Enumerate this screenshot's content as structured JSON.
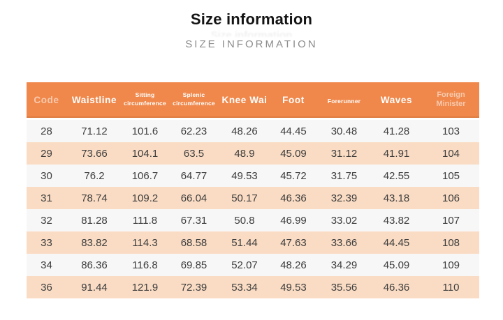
{
  "page": {
    "title": "Size information",
    "subtitle": "SIZE INFORMATION"
  },
  "colors": {
    "header_bg": "#F0884B",
    "header_text": "#FFFFFF",
    "header_text_muted": "#F9D2B2",
    "row_bg": "#F7F7F8",
    "row_alt_bg": "#FADCC4",
    "cell_text": "#3D3D3D",
    "title_text": "#141414",
    "subtitle_text": "#8C8C8C"
  },
  "table": {
    "columns": [
      {
        "key": "code",
        "label": "Code",
        "size": "large",
        "muted": true
      },
      {
        "key": "waistline",
        "label": "Waistline",
        "size": "large",
        "muted": false
      },
      {
        "key": "sitting",
        "label": "Sitting circumference",
        "size": "small",
        "muted": false
      },
      {
        "key": "splenic",
        "label": "Splenic circumference",
        "size": "small",
        "muted": false
      },
      {
        "key": "knee",
        "label": "Knee Wai",
        "size": "large",
        "muted": false
      },
      {
        "key": "foot",
        "label": "Foot",
        "size": "large",
        "muted": false
      },
      {
        "key": "forerunner",
        "label": "Forerunner",
        "size": "small",
        "muted": false
      },
      {
        "key": "waves",
        "label": "Waves",
        "size": "large",
        "muted": false
      },
      {
        "key": "foreign",
        "label": "Foreign Minister",
        "size": "medium",
        "muted": true
      }
    ],
    "rows": [
      [
        "28",
        "71.12",
        "101.6",
        "62.23",
        "48.26",
        "44.45",
        "30.48",
        "41.28",
        "103"
      ],
      [
        "29",
        "73.66",
        "104.1",
        "63.5",
        "48.9",
        "45.09",
        "31.12",
        "41.91",
        "104"
      ],
      [
        "30",
        "76.2",
        "106.7",
        "64.77",
        "49.53",
        "45.72",
        "31.75",
        "42.55",
        "105"
      ],
      [
        "31",
        "78.74",
        "109.2",
        "66.04",
        "50.17",
        "46.36",
        "32.39",
        "43.18",
        "106"
      ],
      [
        "32",
        "81.28",
        "111.8",
        "67.31",
        "50.8",
        "46.99",
        "33.02",
        "43.82",
        "107"
      ],
      [
        "33",
        "83.82",
        "114.3",
        "68.58",
        "51.44",
        "47.63",
        "33.66",
        "44.45",
        "108"
      ],
      [
        "34",
        "86.36",
        "116.8",
        "69.85",
        "52.07",
        "48.26",
        "34.29",
        "45.09",
        "109"
      ],
      [
        "36",
        "91.44",
        "121.9",
        "72.39",
        "53.34",
        "49.53",
        "35.56",
        "46.36",
        "110"
      ]
    ]
  }
}
